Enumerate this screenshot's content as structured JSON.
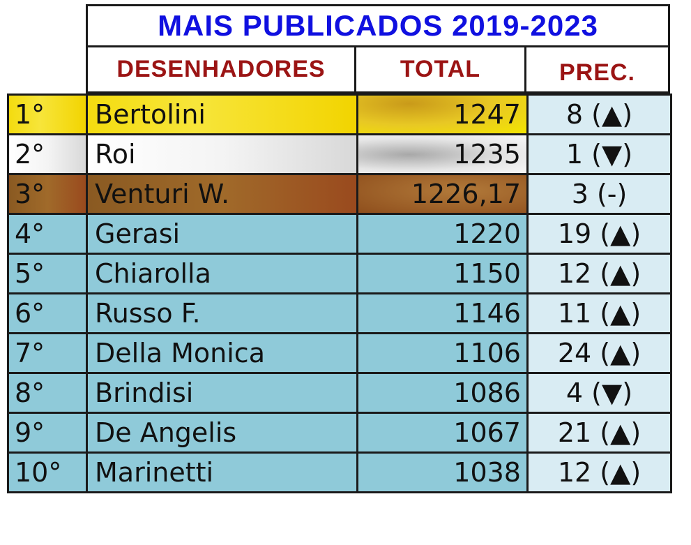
{
  "title": "MAIS PUBLICADOS 2019-2023",
  "headers": {
    "name": "DESENHADORES",
    "total": "TOTAL",
    "prec": "PREC."
  },
  "rows": [
    {
      "rank": "1°",
      "name": "Bertolini",
      "total": "1247",
      "prec": "8 (▲)",
      "medal": "gold"
    },
    {
      "rank": "2°",
      "name": "Roi",
      "total": "1235",
      "prec": "1 (▼)",
      "medal": "silver"
    },
    {
      "rank": "3°",
      "name": "Venturi W.",
      "total": "1226,17",
      "prec": "3 (-)",
      "medal": "bronze"
    },
    {
      "rank": "4°",
      "name": "Gerasi",
      "total": "1220",
      "prec": "19 (▲)"
    },
    {
      "rank": "5°",
      "name": "Chiarolla",
      "total": "1150",
      "prec": "12 (▲)"
    },
    {
      "rank": "6°",
      "name": "Russo F.",
      "total": "1146",
      "prec": "11 (▲)"
    },
    {
      "rank": "7°",
      "name": "Della Monica",
      "total": "1106",
      "prec": "24 (▲)"
    },
    {
      "rank": "8°",
      "name": "Brindisi",
      "total": "1086",
      "prec": "4 (▼)"
    },
    {
      "rank": "9°",
      "name": "De Angelis",
      "total": "1067",
      "prec": "21 (▲)"
    },
    {
      "rank": "10°",
      "name": "Marinetti",
      "total": "1038",
      "prec": "12 (▲)"
    }
  ],
  "colors": {
    "title": "#1010e0",
    "header": "#9b1414",
    "row": "#8fcad9",
    "prec": "#d9ecf3",
    "gold": "#f4dc10",
    "silver": "#e0e0e0",
    "bronze": "#9a5a24"
  }
}
